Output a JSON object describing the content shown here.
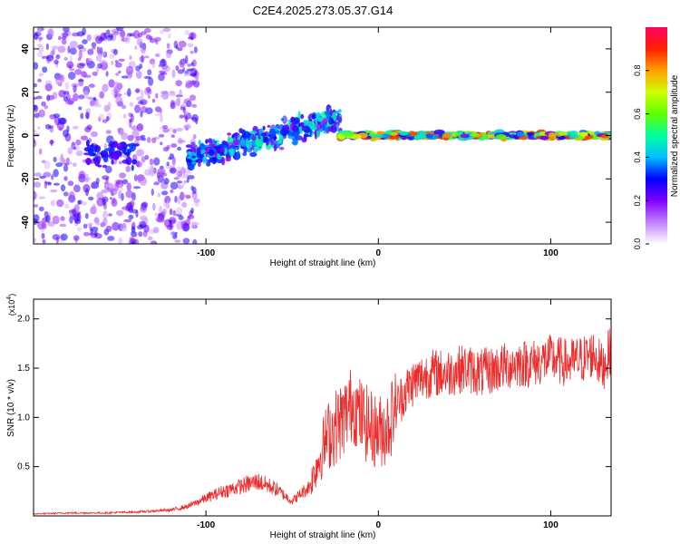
{
  "title": "C2E4.2025.273.05.37.G14",
  "chart_data": [
    {
      "type": "heatmap",
      "name": "spectrogram",
      "xlabel": "Height of straight line (km)",
      "ylabel": "Frequency (Hz)",
      "xlim": [
        -200,
        135
      ],
      "ylim": [
        -50,
        50
      ],
      "xticks": [
        -100,
        0,
        100
      ],
      "xtick_labels": [
        "-100",
        "0",
        "100"
      ],
      "yticks": [
        -40,
        -20,
        0,
        20,
        40
      ],
      "ytick_labels": [
        "-40",
        "-20",
        "0",
        "20",
        "40"
      ],
      "colorbar": {
        "label": "Normalized spectral amplitude",
        "range": [
          0,
          1
        ],
        "ticks": [
          0.0,
          0.2,
          0.4,
          0.6,
          0.8
        ],
        "tick_labels": [
          "0.0",
          "0.2",
          "0.4",
          "0.6",
          "0.8"
        ],
        "colormap": [
          "#ffffff",
          "#c080ff",
          "#8000ff",
          "#0000ff",
          "#00c0ff",
          "#00ffa0",
          "#60ff00",
          "#d0ff00",
          "#ffa000",
          "#ff2000",
          "#ff0060"
        ]
      },
      "regions": [
        {
          "x_range": [
            -200,
            -105
          ],
          "freq_center": 0,
          "freq_spread": 50,
          "amplitude": [
            0.05,
            0.3
          ],
          "note": "scattered noise"
        },
        {
          "x_range": [
            -170,
            -140
          ],
          "freq_center": -8,
          "freq_spread": 10,
          "amplitude": [
            0.2,
            0.35
          ]
        },
        {
          "x_range": [
            -110,
            -22
          ],
          "freq_center_start": -10,
          "freq_center_end": 8,
          "freq_spread": 8,
          "amplitude": [
            0.15,
            0.5
          ]
        },
        {
          "x_range": [
            -22,
            135
          ],
          "freq_center": 0,
          "freq_spread": 2,
          "amplitude": [
            0.2,
            0.95
          ],
          "note": "narrow band near 0 Hz"
        }
      ]
    },
    {
      "type": "line",
      "name": "snr",
      "xlabel": "Height of straight line (km)",
      "ylabel": "SNR (10 * v/v)",
      "y_scale_label": "(x10",
      "y_scale_exp": "4",
      "xlim": [
        -200,
        135
      ],
      "ylim": [
        0,
        2.2
      ],
      "xticks": [
        -100,
        0,
        100
      ],
      "xtick_labels": [
        "-100",
        "0",
        "100"
      ],
      "yticks": [
        0.5,
        1.0,
        1.5,
        2.0
      ],
      "ytick_labels": [
        "0.5",
        "1.0",
        "1.5",
        "2.0"
      ],
      "color": "#ee2b2b",
      "series": [
        {
          "name": "SNR",
          "x": [
            -200,
            -180,
            -160,
            -140,
            -120,
            -110,
            -100,
            -90,
            -80,
            -70,
            -60,
            -50,
            -40,
            -35,
            -30,
            -25,
            -20,
            -15,
            -10,
            -5,
            0,
            5,
            10,
            15,
            20,
            25,
            30,
            40,
            50,
            60,
            70,
            80,
            90,
            100,
            110,
            120,
            125,
            130,
            135
          ],
          "y": [
            0.02,
            0.03,
            0.03,
            0.04,
            0.06,
            0.1,
            0.18,
            0.25,
            0.3,
            0.35,
            0.28,
            0.15,
            0.3,
            0.55,
            0.8,
            0.9,
            1.0,
            1.15,
            1.0,
            0.9,
            0.85,
            0.9,
            1.1,
            1.25,
            1.35,
            1.4,
            1.45,
            1.45,
            1.5,
            1.45,
            1.5,
            1.55,
            1.55,
            1.6,
            1.55,
            1.6,
            1.65,
            1.5,
            1.7
          ]
        }
      ],
      "noise_amplitude": 0.25
    }
  ]
}
